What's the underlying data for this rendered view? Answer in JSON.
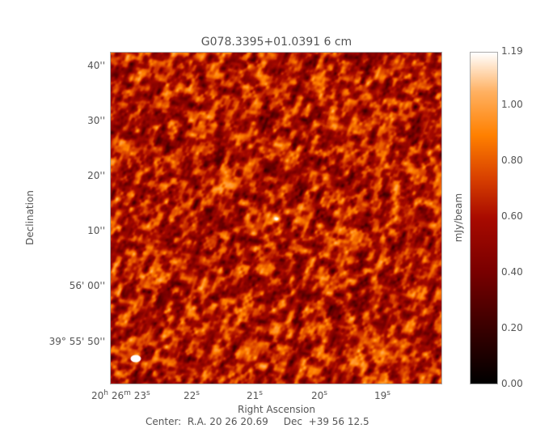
{
  "chart_data": {
    "type": "heatmap",
    "title": "G078.3395+01.0391 6 cm",
    "xlabel": "Right Ascension",
    "ylabel": "Declination",
    "colorbar": {
      "label": "mJy/beam",
      "range": [
        0.0,
        1.19
      ],
      "ticks": [
        "0.00",
        "0.20",
        "0.40",
        "0.60",
        "0.80",
        "1.00",
        "1.19"
      ],
      "colormap": "heat (black-red-orange-white)"
    },
    "x_ticks": [
      {
        "h": "20",
        "m": "26",
        "s": "23"
      },
      {
        "s": "22"
      },
      {
        "s": "21"
      },
      {
        "s": "20"
      },
      {
        "s": "19"
      }
    ],
    "y_ticks": [
      "40''",
      "30''",
      "20''",
      "10''",
      "56' 00''",
      "39° 55' 50''"
    ],
    "center_text": "Center:  R.A. 20 26 20.69     Dec  +39 56 12.5",
    "beam": "white ellipse, lower-left",
    "features": "noise field with a single bright compact source near image center"
  }
}
